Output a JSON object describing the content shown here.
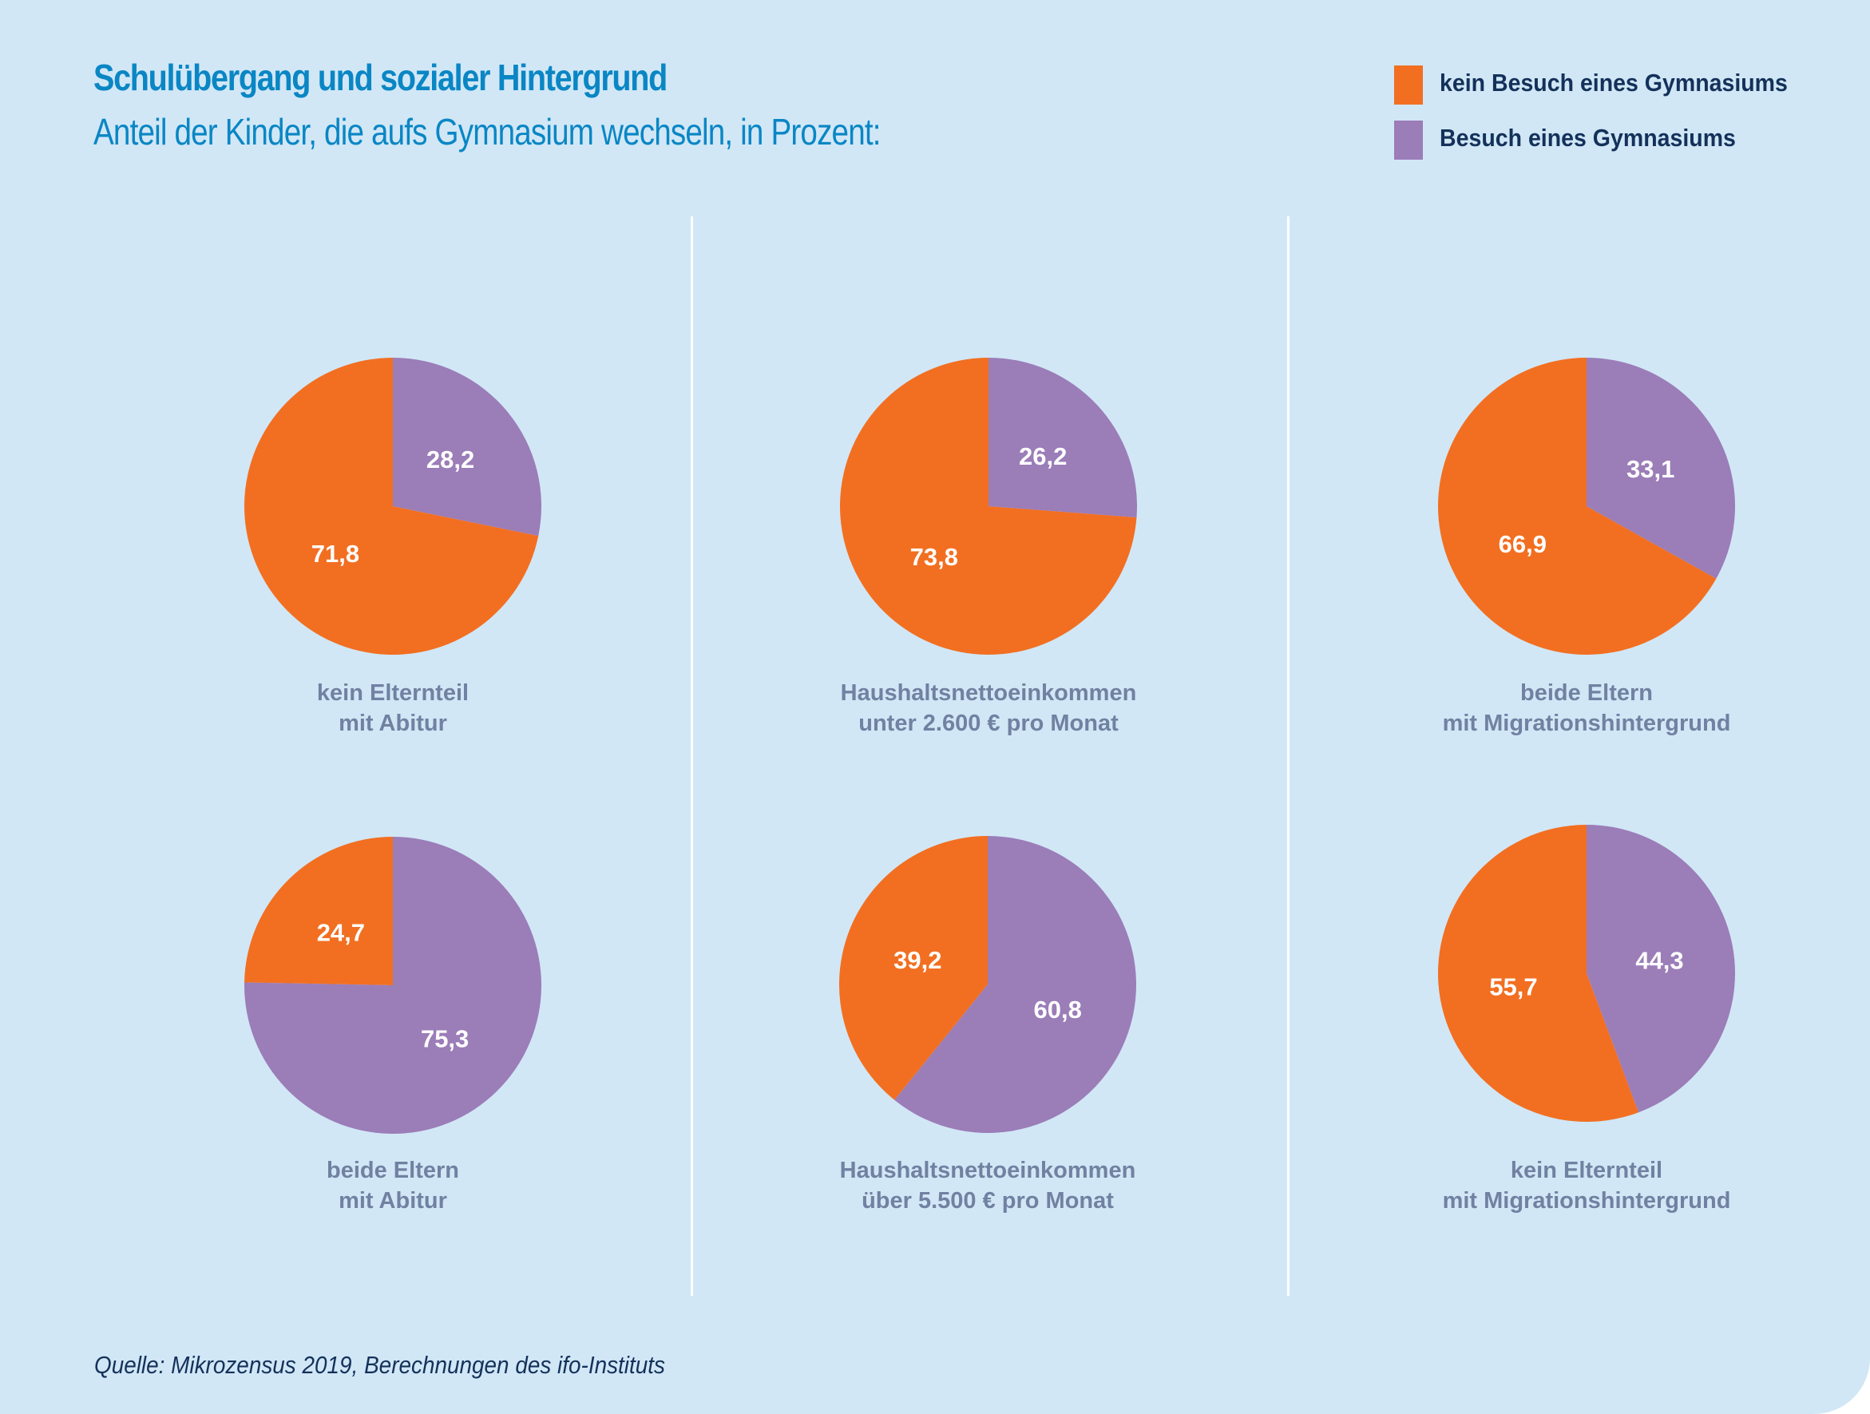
{
  "header": {
    "title": "Schulübergang und sozialer Hintergrund",
    "subtitle": "Anteil der Kinder, die aufs Gymnasium wechseln, in Prozent:"
  },
  "legend": {
    "items": [
      {
        "label": "kein Besuch eines Gymnasiums",
        "color": "#f26f21"
      },
      {
        "label": "Besuch eines Gymnasiums",
        "color": "#9b7db8"
      }
    ]
  },
  "source": "Quelle: Mikrozensus 2019, Berechnungen des ifo-Instituts",
  "colors": {
    "background": "#d1e7f6",
    "orange": "#f26f21",
    "purple": "#9b7db8",
    "title": "#0a86c4",
    "label": "#7181a1"
  },
  "chart_data": [
    {
      "type": "pie",
      "title": "kein Elternteil mit Abitur",
      "label_lines": [
        "kein Elternteil",
        "mit Abitur"
      ],
      "slices": [
        {
          "name": "kein Besuch eines Gymnasiums",
          "value": 71.8,
          "label": "71,8"
        },
        {
          "name": "Besuch eines Gymnasiums",
          "value": 28.2,
          "label": "28,2"
        }
      ],
      "purple_direction": "clockwise"
    },
    {
      "type": "pie",
      "title": "Haushaltsnettoeinkommen unter 2.600 € pro Monat",
      "label_lines": [
        "Haushaltsnettoeinkommen",
        "unter 2.600 € pro Monat"
      ],
      "slices": [
        {
          "name": "kein Besuch eines Gymnasiums",
          "value": 73.8,
          "label": "73,8"
        },
        {
          "name": "Besuch eines Gymnasiums",
          "value": 26.2,
          "label": "26,2"
        }
      ],
      "purple_direction": "clockwise"
    },
    {
      "type": "pie",
      "title": "beide Eltern mit Migrationshintergrund",
      "label_lines": [
        "beide Eltern",
        "mit Migrationshintergrund"
      ],
      "slices": [
        {
          "name": "kein Besuch eines Gymnasiums",
          "value": 66.9,
          "label": "66,9"
        },
        {
          "name": "Besuch eines Gymnasiums",
          "value": 33.1,
          "label": "33,1"
        }
      ],
      "purple_direction": "clockwise"
    },
    {
      "type": "pie",
      "title": "beide Eltern mit Abitur",
      "label_lines": [
        "beide Eltern",
        "mit Abitur"
      ],
      "slices": [
        {
          "name": "kein Besuch eines Gymnasiums",
          "value": 24.7,
          "label": "24,7"
        },
        {
          "name": "Besuch eines Gymnasiums",
          "value": 75.3,
          "label": "75,3"
        }
      ],
      "purple_direction": "clockwise"
    },
    {
      "type": "pie",
      "title": "Haushaltsnettoeinkommen über 5.500 € pro Monat",
      "label_lines": [
        "Haushaltsnettoeinkommen",
        "über 5.500 € pro Monat"
      ],
      "slices": [
        {
          "name": "kein Besuch eines Gymnasiums",
          "value": 39.2,
          "label": "39,2"
        },
        {
          "name": "Besuch eines Gymnasiums",
          "value": 60.8,
          "label": "60,8"
        }
      ],
      "purple_direction": "clockwise"
    },
    {
      "type": "pie",
      "title": "kein Elternteil mit Migrationshintergrund",
      "label_lines": [
        "kein Elternteil",
        "mit Migrationshintergrund"
      ],
      "slices": [
        {
          "name": "kein Besuch eines Gymnasiums",
          "value": 55.7,
          "label": "55,7"
        },
        {
          "name": "Besuch eines Gymnasiums",
          "value": 44.3,
          "label": "44,3"
        }
      ],
      "purple_direction": "clockwise"
    }
  ]
}
